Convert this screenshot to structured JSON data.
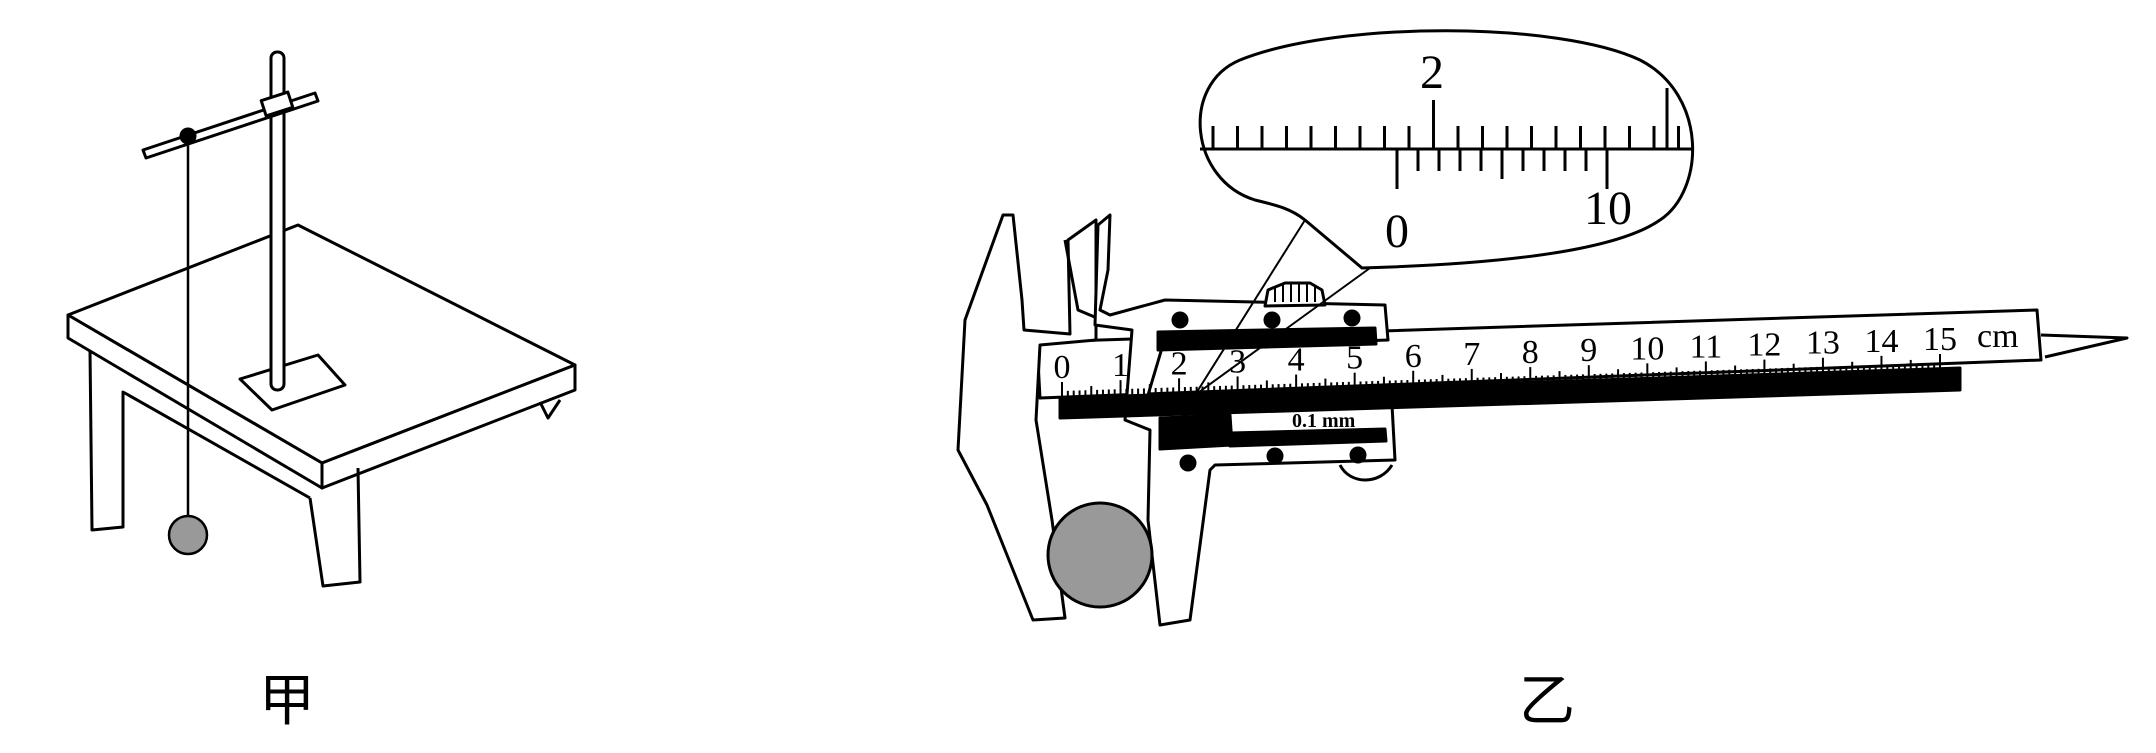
{
  "figure_a": {
    "caption": "甲"
  },
  "figure_b": {
    "caption": "乙",
    "main_scale": {
      "labels": [
        "0",
        "1",
        "2",
        "3",
        "4",
        "5",
        "6",
        "7",
        "8",
        "9",
        "10",
        "11",
        "12",
        "13",
        "14",
        "15"
      ],
      "unit": "cm"
    },
    "vernier_precision": "0.1 mm",
    "magnifier": {
      "main_label": "2",
      "vernier_labels": [
        "0",
        "10"
      ]
    }
  }
}
